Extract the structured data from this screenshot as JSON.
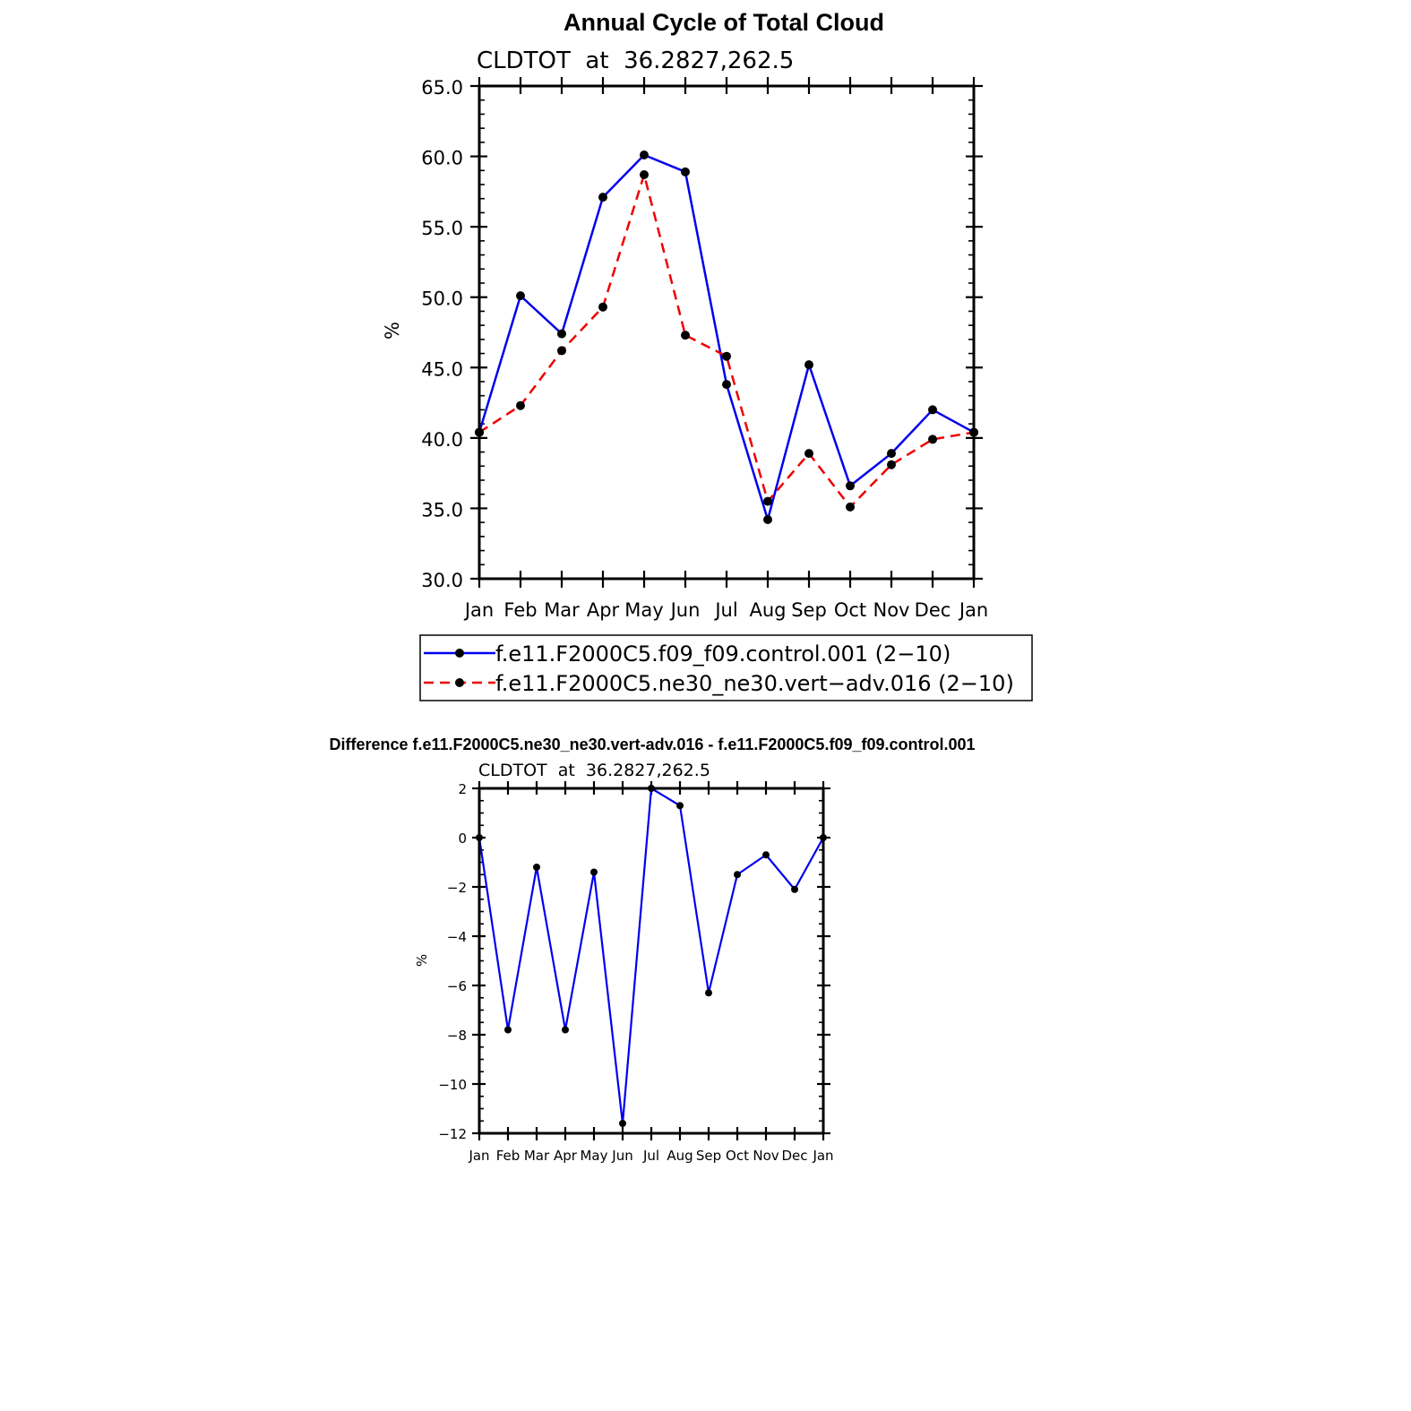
{
  "chart_data": [
    {
      "type": "line",
      "title": "Annual Cycle of Total Cloud",
      "subtitle": "CLDTOT  at  36.2827,262.5",
      "xlabel": "",
      "ylabel": "%",
      "categories": [
        "Jan",
        "Feb",
        "Mar",
        "Apr",
        "May",
        "Jun",
        "Jul",
        "Aug",
        "Sep",
        "Oct",
        "Nov",
        "Dec",
        "Jan"
      ],
      "yticks": [
        "30.0",
        "35.0",
        "40.0",
        "45.0",
        "50.0",
        "55.0",
        "60.0",
        "65.0"
      ],
      "ylim": [
        30,
        65
      ],
      "grid": false,
      "legend_position": "bottom",
      "series": [
        {
          "name": "f.e11.F2000C5.f09_f09.control.001 (2−10)",
          "color": "#0000ee",
          "dash": "solid",
          "values": [
            40.4,
            50.1,
            47.4,
            57.1,
            60.1,
            58.9,
            43.8,
            34.2,
            45.2,
            36.6,
            38.9,
            42.0,
            40.4
          ]
        },
        {
          "name": "f.e11.F2000C5.ne30_ne30.vert−adv.016 (2−10)",
          "color": "#ee0000",
          "dash": "dashed",
          "values": [
            40.4,
            42.3,
            46.2,
            49.3,
            58.7,
            47.3,
            45.8,
            35.5,
            38.9,
            35.1,
            38.1,
            39.9,
            40.4
          ]
        }
      ]
    },
    {
      "type": "line",
      "title": "Difference f.e11.F2000C5.ne30_ne30.vert-adv.016 - f.e11.F2000C5.f09_f09.control.001",
      "subtitle": "CLDTOT  at  36.2827,262.5",
      "xlabel": "",
      "ylabel": "%",
      "categories": [
        "Jan",
        "Feb",
        "Mar",
        "Apr",
        "May",
        "Jun",
        "Jul",
        "Aug",
        "Sep",
        "Oct",
        "Nov",
        "Dec",
        "Jan"
      ],
      "yticks": [
        "−12",
        "−10",
        "−8",
        "−6",
        "−4",
        "−2",
        "0",
        "2"
      ],
      "ylim": [
        -12,
        2
      ],
      "grid": false,
      "series": [
        {
          "color": "#0000ee",
          "dash": "solid",
          "values": [
            0.0,
            -7.8,
            -1.2,
            -7.8,
            -1.4,
            -11.6,
            2.0,
            1.3,
            -6.3,
            -1.5,
            -0.7,
            -2.1,
            0.0
          ]
        }
      ]
    }
  ]
}
